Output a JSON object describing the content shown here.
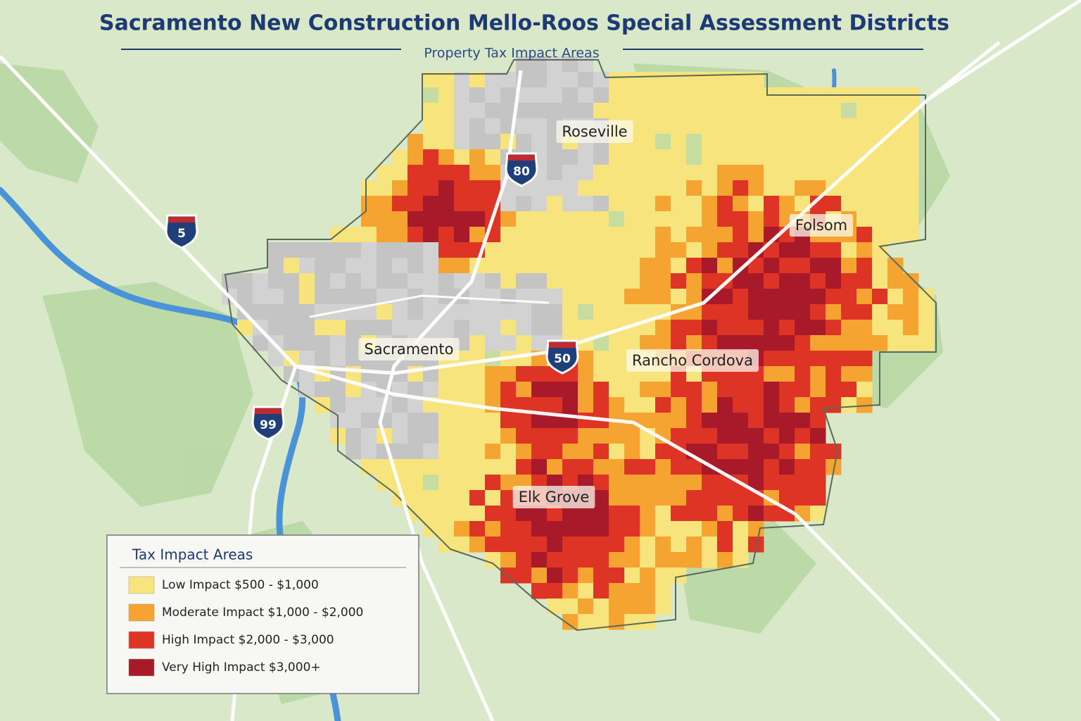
{
  "header": {
    "title": "Sacramento New Construction Mello-Roos Special Assessment Districts",
    "subtitle": "Property Tax Impact Areas"
  },
  "cities": [
    {
      "label": "Roseville"
    },
    {
      "label": "Folsom"
    },
    {
      "label": "Sacramento"
    },
    {
      "label": "Rancho Cordova"
    },
    {
      "label": "Elk Grove"
    }
  ],
  "highways": [
    {
      "label": "80"
    },
    {
      "label": "5"
    },
    {
      "label": "50"
    },
    {
      "label": "99"
    }
  ],
  "legend": {
    "title": "Tax Impact Areas",
    "items": [
      {
        "label": "Low Impact $500 - $1,000",
        "color": "#f7e47c"
      },
      {
        "label": "Moderate Impact $1,000 - $2,000",
        "color": "#f5a431"
      },
      {
        "label": "High Impact $2,000 - $3,000",
        "color": "#de3426"
      },
      {
        "label": "Very High Impact $3,000+",
        "color": "#a8192a"
      }
    ]
  }
}
